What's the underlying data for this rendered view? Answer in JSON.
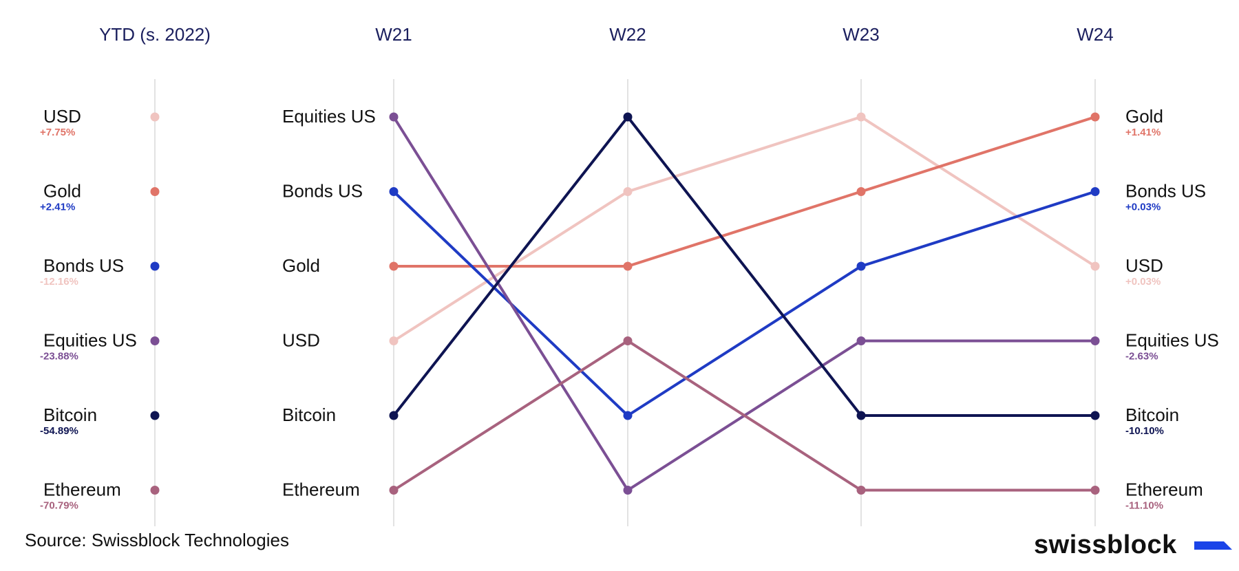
{
  "chart_data": {
    "type": "line",
    "subtype": "bump",
    "x": [
      "YTD (s. 2022)",
      "W21",
      "W22",
      "W23",
      "W24"
    ],
    "ranks_note": "rank 1 = top",
    "series": [
      {
        "name": "USD",
        "color": "#f0c4c0",
        "ranks": [
          1,
          4,
          2,
          1,
          3
        ],
        "ytd_label": "+7.75%",
        "w24_label": "+0.03%"
      },
      {
        "name": "Gold",
        "color": "#e07468",
        "ranks": [
          2,
          3,
          3,
          2,
          1
        ],
        "ytd_label": "+2.41%",
        "w24_label": "+1.41%"
      },
      {
        "name": "Bonds US",
        "color": "#1f3bc4",
        "ranks": [
          3,
          2,
          5,
          3,
          2
        ],
        "ytd_label": "-12.16%",
        "w24_label": "+0.03%"
      },
      {
        "name": "Equities US",
        "color": "#7b4f94",
        "ranks": [
          4,
          1,
          6,
          4,
          4
        ],
        "ytd_label": "-23.88%",
        "w24_label": "-2.63%"
      },
      {
        "name": "Bitcoin",
        "color": "#0e1452",
        "ranks": [
          5,
          5,
          1,
          5,
          5
        ],
        "ytd_label": "-54.89%",
        "w24_label": "-10.10%"
      },
      {
        "name": "Ethereum",
        "color": "#a8627e",
        "ranks": [
          6,
          6,
          4,
          6,
          6
        ],
        "ytd_label": "-70.79%",
        "w24_label": "-11.10%"
      }
    ],
    "ytd_pct_colors": [
      "#e07468",
      "#1f3bc4",
      "#f0c4c0",
      "#7b4f94",
      "#0e1452",
      "#a8627e"
    ],
    "w24_pct_colors": [
      "#e07468",
      "#1f3bc4",
      "#f0c4c0",
      "#7b4f94",
      "#0e1452",
      "#a8627e"
    ],
    "grid": "vertical"
  },
  "footer": {
    "source": "Source: Swissblock Technologies",
    "brand": "swissblock",
    "brand_accent_color": "#1a44e8"
  }
}
